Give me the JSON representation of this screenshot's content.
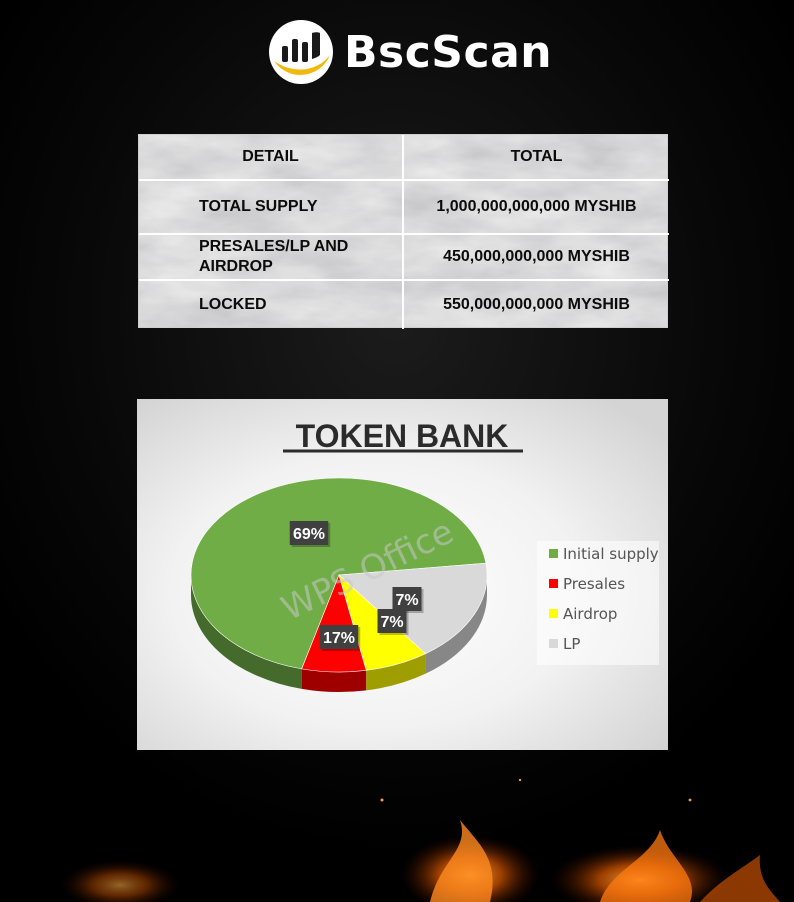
{
  "brand": {
    "name": "BscScan"
  },
  "table": {
    "headers": [
      "DETAIL",
      "TOTAL"
    ],
    "rows": [
      {
        "detail": "TOTAL SUPPLY",
        "total": "1,000,000,000,000 MYSHIB"
      },
      {
        "detail": "PRESALES/LP AND AIRDROP",
        "total": "450,000,000,000 MYSHIB"
      },
      {
        "detail": "LOCKED",
        "total": "550,000,000,000 MYSHIB"
      }
    ]
  },
  "chart_data": {
    "type": "pie",
    "title": "TOKEN BANK",
    "style": "3d",
    "legend_position": "right",
    "slices": [
      {
        "name": "Initial supply",
        "value": 69,
        "label": "69%",
        "color": "#70ad47"
      },
      {
        "name": "Presales",
        "value": 7,
        "label": "7%",
        "color": "#ff0000"
      },
      {
        "name": "Airdrop",
        "value": 7,
        "label": "7%",
        "color": "#ffff00"
      },
      {
        "name": "LP",
        "value": 17,
        "label": "17%",
        "color": "#d9d9d9"
      }
    ]
  },
  "watermark": "WPS Office",
  "colors": {
    "background": "#000000",
    "logo_accent": "#f0b90b"
  }
}
